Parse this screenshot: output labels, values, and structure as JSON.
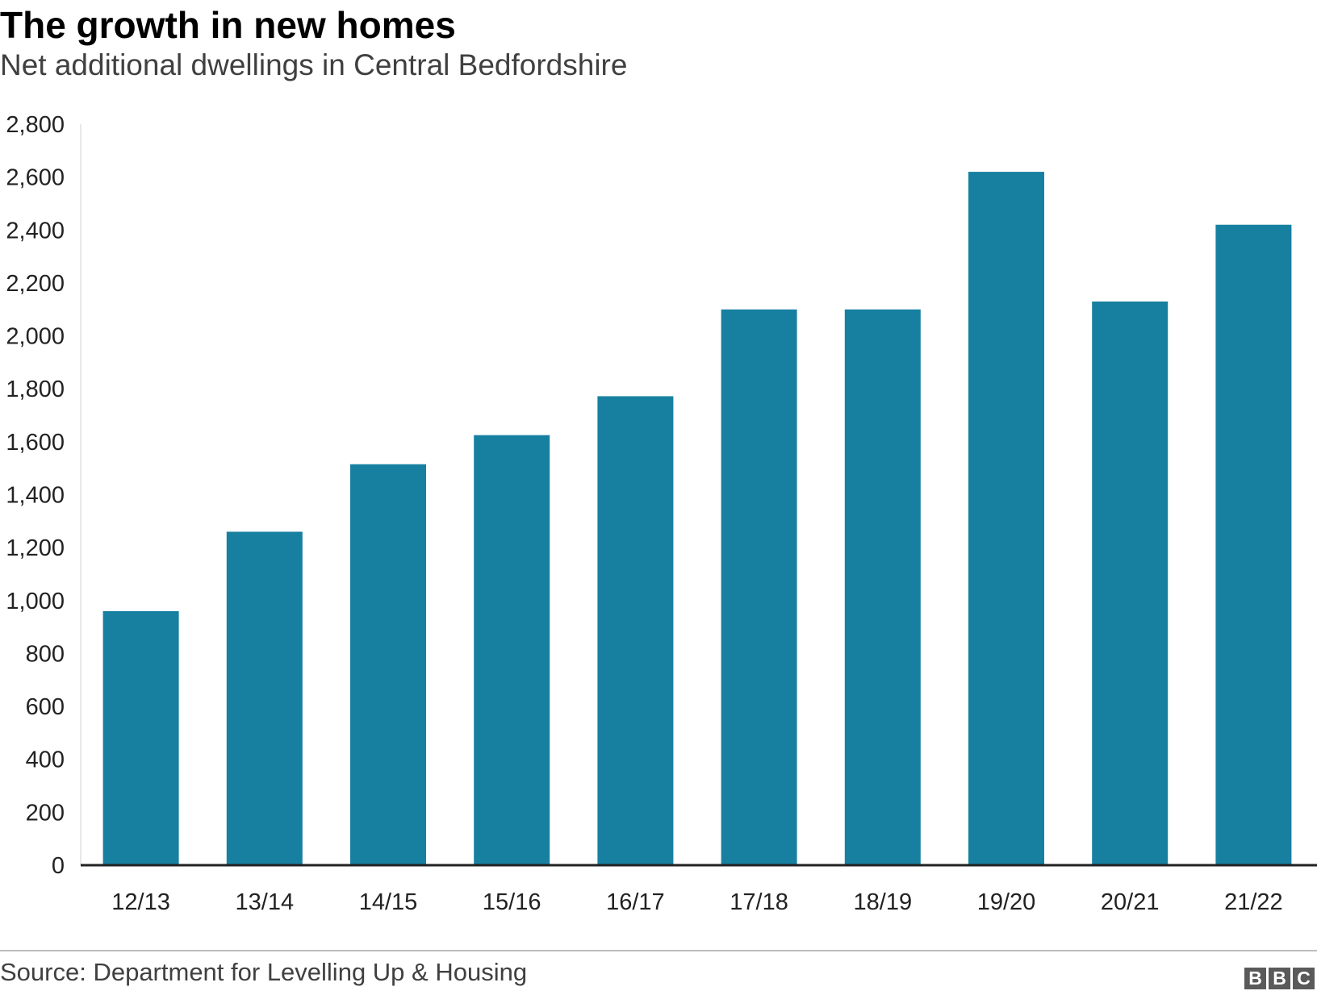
{
  "header": {
    "title": "The growth in new homes",
    "subtitle": "Net additional dwellings in Central Bedfordshire"
  },
  "footer": {
    "source": "Source: Department for Levelling Up & Housing",
    "logo_letters": [
      "B",
      "B",
      "C"
    ]
  },
  "colors": {
    "bar": "#1780a1",
    "axis": "#222222",
    "text": "#222222"
  },
  "chart_data": {
    "type": "bar",
    "title": "The growth in new homes",
    "subtitle": "Net additional dwellings in Central Bedfordshire",
    "xlabel": "",
    "ylabel": "",
    "categories": [
      "12/13",
      "13/14",
      "14/15",
      "15/16",
      "16/17",
      "17/18",
      "18/19",
      "19/20",
      "20/21",
      "21/22"
    ],
    "values": [
      960,
      1260,
      1515,
      1625,
      1772,
      2100,
      2100,
      2620,
      2130,
      2420
    ],
    "ylim": [
      0,
      2800
    ],
    "yticks": [
      0,
      200,
      400,
      600,
      800,
      1000,
      1200,
      1400,
      1600,
      1800,
      2000,
      2200,
      2400,
      2600,
      2800
    ],
    "ytick_labels": [
      "0",
      "200",
      "400",
      "600",
      "800",
      "1,000",
      "1,200",
      "1,400",
      "1,600",
      "1,800",
      "2,000",
      "2,200",
      "2,400",
      "2,600",
      "2,800"
    ],
    "grid": false,
    "legend": "none"
  }
}
